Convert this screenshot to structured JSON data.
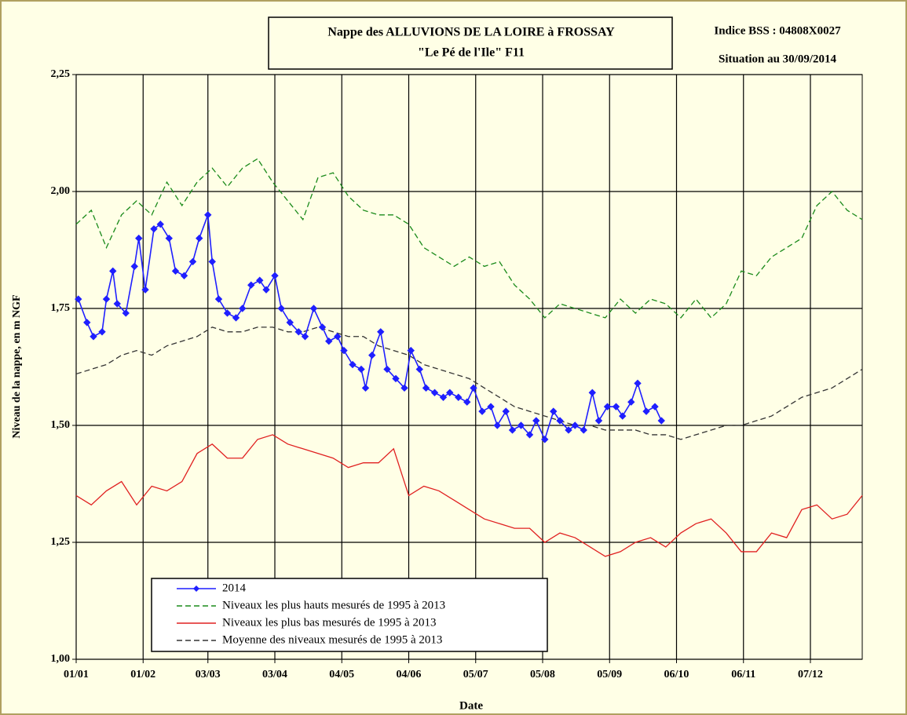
{
  "chart_data": {
    "type": "line",
    "title": "Nappe des ALLUVIONS DE LA LOIRE à FROSSAY",
    "subtitle": "\"Le Pé de l'Ile\" F11",
    "annotations": [
      "Indice BSS : 04808X0027",
      "Situation au 30/09/2014"
    ],
    "xlabel": "Date",
    "ylabel": "Niveau de la nappe, en m NGF",
    "xlim": [
      0,
      364
    ],
    "xticks": [
      {
        "value": 0,
        "label": "01/01"
      },
      {
        "value": 31,
        "label": "01/02"
      },
      {
        "value": 61,
        "label": "03/03"
      },
      {
        "value": 92,
        "label": "03/04"
      },
      {
        "value": 123,
        "label": "04/05"
      },
      {
        "value": 154,
        "label": "04/06"
      },
      {
        "value": 185,
        "label": "05/07"
      },
      {
        "value": 216,
        "label": "05/08"
      },
      {
        "value": 247,
        "label": "05/09"
      },
      {
        "value": 278,
        "label": "06/10"
      },
      {
        "value": 309,
        "label": "06/11"
      },
      {
        "value": 340,
        "label": "07/12"
      }
    ],
    "ylim": [
      1.0,
      2.25
    ],
    "yticks": [
      {
        "value": 1.0,
        "label": "1,00"
      },
      {
        "value": 1.25,
        "label": "1,25"
      },
      {
        "value": 1.5,
        "label": "1,50"
      },
      {
        "value": 1.75,
        "label": "1,75"
      },
      {
        "value": 2.0,
        "label": "2,00"
      },
      {
        "value": 2.25,
        "label": "2,25"
      }
    ],
    "grid": true,
    "legend": "lower-left",
    "series": [
      {
        "name": "2014",
        "color": "#1f1fff",
        "style": "solid",
        "marker": "diamond",
        "x": [
          1,
          5,
          8,
          12,
          14,
          17,
          19,
          23,
          27,
          29,
          32,
          36,
          39,
          43,
          46,
          50,
          54,
          57,
          61,
          63,
          66,
          70,
          74,
          77,
          81,
          85,
          88,
          92,
          95,
          99,
          103,
          106,
          110,
          114,
          117,
          121,
          124,
          128,
          132,
          134,
          137,
          141,
          144,
          148,
          152,
          155,
          159,
          162,
          166,
          170,
          173,
          177,
          181,
          184,
          188,
          192,
          195,
          199,
          202,
          206,
          210,
          213,
          217,
          221,
          224,
          228,
          231,
          235,
          239,
          242,
          246,
          250,
          253,
          257,
          260,
          264,
          268,
          271
        ],
        "values": [
          1.77,
          1.72,
          1.69,
          1.7,
          1.77,
          1.83,
          1.76,
          1.74,
          1.84,
          1.9,
          1.79,
          1.92,
          1.93,
          1.9,
          1.83,
          1.82,
          1.85,
          1.9,
          1.95,
          1.85,
          1.77,
          1.74,
          1.73,
          1.75,
          1.8,
          1.81,
          1.79,
          1.82,
          1.75,
          1.72,
          1.7,
          1.69,
          1.75,
          1.71,
          1.68,
          1.69,
          1.66,
          1.63,
          1.62,
          1.58,
          1.65,
          1.7,
          1.62,
          1.6,
          1.58,
          1.66,
          1.62,
          1.58,
          1.57,
          1.56,
          1.57,
          1.56,
          1.55,
          1.58,
          1.53,
          1.54,
          1.5,
          1.53,
          1.49,
          1.5,
          1.48,
          1.51,
          1.47,
          1.53,
          1.51,
          1.49,
          1.5,
          1.49,
          1.57,
          1.51,
          1.54,
          1.54,
          1.52,
          1.55,
          1.59,
          1.53,
          1.54,
          1.51
        ]
      },
      {
        "name": "Niveaux les plus hauts mesurés de 1995 à 2013",
        "color": "#1a8a1a",
        "style": "dashed",
        "x": [
          0,
          7,
          14,
          21,
          28,
          35,
          42,
          49,
          56,
          63,
          70,
          77,
          84,
          91,
          98,
          105,
          112,
          119,
          126,
          133,
          140,
          147,
          154,
          161,
          168,
          175,
          182,
          189,
          196,
          203,
          210,
          217,
          224,
          231,
          238,
          245,
          252,
          259,
          266,
          273,
          280,
          287,
          294,
          301,
          308,
          315,
          322,
          329,
          336,
          343,
          350,
          357,
          364
        ],
        "values": [
          1.93,
          1.96,
          1.88,
          1.95,
          1.98,
          1.95,
          2.02,
          1.97,
          2.02,
          2.05,
          2.01,
          2.05,
          2.07,
          2.02,
          1.98,
          1.94,
          2.03,
          2.04,
          1.99,
          1.96,
          1.95,
          1.95,
          1.93,
          1.88,
          1.86,
          1.84,
          1.86,
          1.84,
          1.85,
          1.8,
          1.77,
          1.73,
          1.76,
          1.75,
          1.74,
          1.73,
          1.77,
          1.74,
          1.77,
          1.76,
          1.73,
          1.77,
          1.73,
          1.76,
          1.83,
          1.82,
          1.86,
          1.88,
          1.9,
          1.97,
          2.0,
          1.96,
          1.94
        ]
      },
      {
        "name": "Niveaux les plus bas mesurés de 1995 à 2013",
        "color": "#e02020",
        "style": "solid",
        "x": [
          0,
          7,
          14,
          21,
          28,
          35,
          42,
          49,
          56,
          63,
          70,
          77,
          84,
          91,
          98,
          105,
          112,
          119,
          126,
          133,
          140,
          147,
          154,
          161,
          168,
          175,
          182,
          189,
          196,
          203,
          210,
          217,
          224,
          231,
          238,
          245,
          252,
          259,
          266,
          273,
          280,
          287,
          294,
          301,
          308,
          315,
          322,
          329,
          336,
          343,
          350,
          357,
          364
        ],
        "values": [
          1.35,
          1.33,
          1.36,
          1.38,
          1.33,
          1.37,
          1.36,
          1.38,
          1.44,
          1.46,
          1.43,
          1.43,
          1.47,
          1.48,
          1.46,
          1.45,
          1.44,
          1.43,
          1.41,
          1.42,
          1.42,
          1.45,
          1.35,
          1.37,
          1.36,
          1.34,
          1.32,
          1.3,
          1.29,
          1.28,
          1.28,
          1.25,
          1.27,
          1.26,
          1.24,
          1.22,
          1.23,
          1.25,
          1.26,
          1.24,
          1.27,
          1.29,
          1.3,
          1.27,
          1.23,
          1.23,
          1.27,
          1.26,
          1.32,
          1.33,
          1.3,
          1.31,
          1.35
        ]
      },
      {
        "name": "Moyenne des niveaux mesurés de 1995 à 2013",
        "color": "#333333",
        "style": "dashed",
        "x": [
          0,
          7,
          14,
          21,
          28,
          35,
          42,
          49,
          56,
          63,
          70,
          77,
          84,
          91,
          98,
          105,
          112,
          119,
          126,
          133,
          140,
          147,
          154,
          161,
          168,
          175,
          182,
          189,
          196,
          203,
          210,
          217,
          224,
          231,
          238,
          245,
          252,
          259,
          266,
          273,
          280,
          287,
          294,
          301,
          308,
          315,
          322,
          329,
          336,
          343,
          350,
          357,
          364
        ],
        "values": [
          1.61,
          1.62,
          1.63,
          1.65,
          1.66,
          1.65,
          1.67,
          1.68,
          1.69,
          1.71,
          1.7,
          1.7,
          1.71,
          1.71,
          1.7,
          1.7,
          1.71,
          1.7,
          1.69,
          1.69,
          1.67,
          1.66,
          1.65,
          1.63,
          1.62,
          1.61,
          1.6,
          1.58,
          1.56,
          1.54,
          1.53,
          1.52,
          1.51,
          1.5,
          1.5,
          1.49,
          1.49,
          1.49,
          1.48,
          1.48,
          1.47,
          1.48,
          1.49,
          1.5,
          1.5,
          1.51,
          1.52,
          1.54,
          1.56,
          1.57,
          1.58,
          1.6,
          1.62
        ]
      }
    ]
  }
}
